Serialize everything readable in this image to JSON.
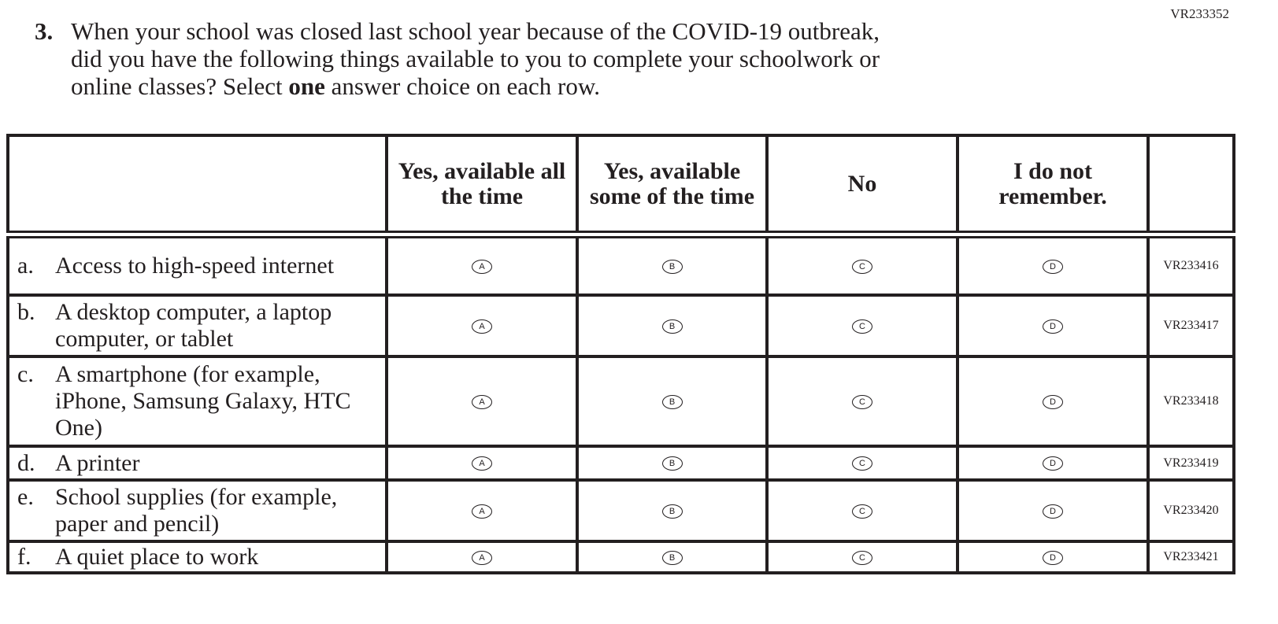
{
  "item_id": "VR233352",
  "question": {
    "number": "3.",
    "line1": "When your school was closed last school year because of the COVID-19 outbreak,",
    "line2": "did you have the following things available to you to complete your schoolwork or",
    "line3_pre": "online classes? Select ",
    "line3_bold": "one",
    "line3_post": " answer choice on each row."
  },
  "columns": [
    "Yes, available all the time",
    "Yes, available some of the time",
    "No",
    "I do not remember."
  ],
  "bubble_letters": [
    "A",
    "B",
    "C",
    "D"
  ],
  "rows": [
    {
      "letter": "a.",
      "text": "Access to high-speed internet",
      "code": "VR233416"
    },
    {
      "letter": "b.",
      "text": "A desktop computer, a laptop computer, or tablet",
      "code": "VR233417"
    },
    {
      "letter": "c.",
      "text": "A smartphone (for example, iPhone, Samsung Galaxy, HTC One)",
      "code": "VR233418"
    },
    {
      "letter": "d.",
      "text": "A printer",
      "code": "VR233419"
    },
    {
      "letter": "e.",
      "text": "School supplies (for example, paper and pencil)",
      "code": "VR233420"
    },
    {
      "letter": "f.",
      "text": "A quiet place to work",
      "code": "VR233421"
    }
  ]
}
